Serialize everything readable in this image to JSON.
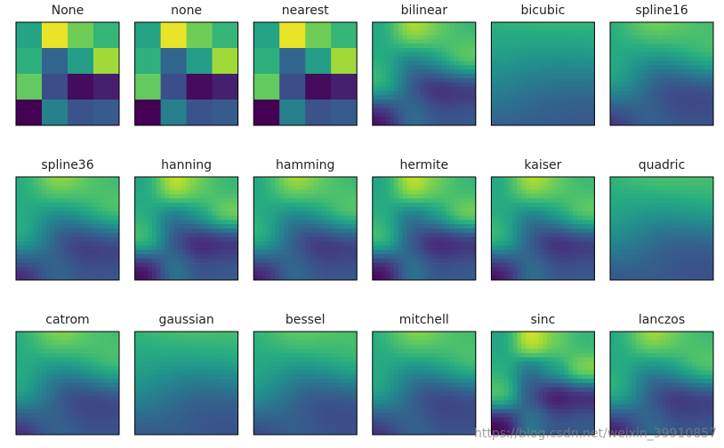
{
  "chart_data": {
    "type": "heatmap",
    "colormap": "viridis",
    "grid": [
      [
        0.58,
        0.97,
        0.78,
        0.66
      ],
      [
        0.64,
        0.33,
        0.56,
        0.86
      ],
      [
        0.76,
        0.24,
        0.03,
        0.09
      ],
      [
        0.0,
        0.44,
        0.26,
        0.29
      ]
    ],
    "value_range": [
      0,
      1
    ],
    "layout": "3x6 small multiples",
    "panels": [
      {
        "title": "None",
        "method": "nearest",
        "blur": 0
      },
      {
        "title": "none",
        "method": "nearest",
        "blur": 0
      },
      {
        "title": "nearest",
        "method": "nearest",
        "blur": 0
      },
      {
        "title": "bilinear",
        "method": "smooth",
        "blur": 0.55
      },
      {
        "title": "bicubic",
        "method": "smooth",
        "blur": 1.25
      },
      {
        "title": "spline16",
        "method": "smooth",
        "blur": 0.75
      },
      {
        "title": "spline36",
        "method": "smooth",
        "blur": 0.65
      },
      {
        "title": "hanning",
        "method": "smooth",
        "blur": 0.5
      },
      {
        "title": "hamming",
        "method": "smooth",
        "blur": 0.6
      },
      {
        "title": "hermite",
        "method": "smooth",
        "blur": 0.5
      },
      {
        "title": "kaiser",
        "method": "smooth",
        "blur": 0.55
      },
      {
        "title": "quadric",
        "method": "smooth",
        "blur": 1.0
      },
      {
        "title": "catrom",
        "method": "smooth",
        "blur": 0.7
      },
      {
        "title": "gaussian",
        "method": "smooth",
        "blur": 1.05
      },
      {
        "title": "bessel",
        "method": "smooth",
        "blur": 0.85
      },
      {
        "title": "mitchell",
        "method": "smooth",
        "blur": 0.7
      },
      {
        "title": "sinc",
        "method": "smooth",
        "blur": 0.45
      },
      {
        "title": "lanczos",
        "method": "smooth",
        "blur": 0.6
      }
    ],
    "axes_ticks": "off"
  },
  "watermark": "https://blog.csdn.net/weixin_39910857"
}
